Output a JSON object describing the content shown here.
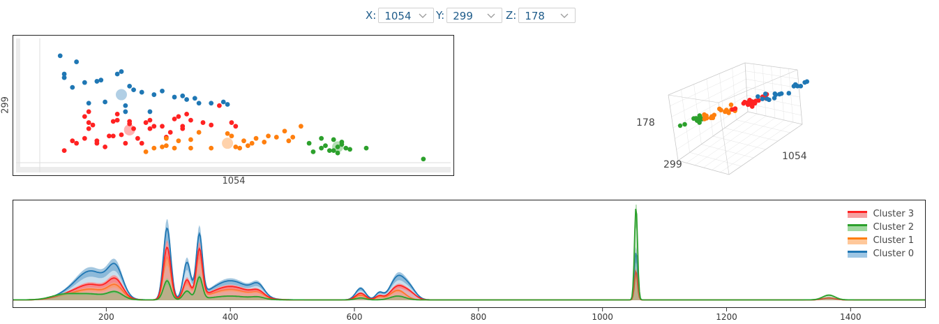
{
  "controls": {
    "x": {
      "label": "X:",
      "value": "1054"
    },
    "y": {
      "label": "Y:",
      "value": "299"
    },
    "z": {
      "label": "Z:",
      "value": "178"
    }
  },
  "colors": {
    "cluster0": "#1f77b4",
    "cluster1": "#ff7f0e",
    "cluster2": "#2ca02c",
    "cluster3": "#ff2222"
  },
  "chart_data": [
    {
      "type": "scatter",
      "title": "",
      "xlabel": "1054",
      "ylabel": "299",
      "grid": false,
      "xlim": [
        0,
        100
      ],
      "ylim": [
        0,
        100
      ],
      "series": [
        {
          "key": "cluster0",
          "color": "#1f77b4",
          "x": [
            5,
            9,
            6,
            6,
            8,
            11,
            15,
            14,
            20,
            19,
            22,
            23,
            25,
            28,
            30,
            33,
            35,
            38,
            39,
            42,
            45,
            46,
            12,
            16,
            21,
            27,
            36,
            21
          ],
          "y": [
            88,
            83,
            70,
            73,
            62,
            66,
            68,
            67,
            75,
            73,
            63,
            60,
            58,
            56,
            59,
            54,
            55,
            53,
            49,
            49,
            50,
            48,
            49,
            50,
            42,
            42,
            52,
            47
          ],
          "centroid": {
            "x": 20,
            "y": 56
          }
        },
        {
          "key": "cluster3",
          "color": "#ff2222",
          "x": [
            6,
            8,
            9,
            11,
            12,
            12,
            13,
            14,
            14,
            16,
            17,
            18,
            18,
            19,
            20,
            21,
            22,
            22,
            23,
            24,
            25,
            26,
            27,
            27,
            28,
            30,
            31,
            32,
            33,
            34,
            35,
            35,
            36,
            37,
            40,
            42,
            44,
            47,
            48,
            11,
            12,
            19
          ],
          "y": [
            10,
            18,
            16,
            20,
            28,
            33,
            31,
            18,
            16,
            13,
            22,
            22,
            34,
            40,
            23,
            16,
            32,
            34,
            28,
            20,
            16,
            33,
            35,
            28,
            30,
            30,
            21,
            25,
            36,
            38,
            30,
            28,
            40,
            35,
            33,
            31,
            47,
            33,
            30,
            38,
            42,
            35
          ],
          "centroid": {
            "x": 22,
            "y": 27
          }
        },
        {
          "key": "cluster1",
          "color": "#ff7f0e",
          "x": [
            26,
            28,
            30,
            31,
            31,
            33,
            34,
            37,
            37,
            39,
            42,
            46,
            47,
            48,
            49,
            50,
            51,
            52,
            53,
            55,
            56,
            58,
            60,
            61,
            62,
            64
          ],
          "y": [
            9,
            12,
            13,
            20,
            14,
            12,
            18,
            12,
            19,
            25,
            12,
            24,
            22,
            13,
            12,
            18,
            14,
            16,
            20,
            17,
            22,
            21,
            26,
            18,
            21,
            30
          ],
          "centroid": {
            "x": 46,
            "y": 16
          }
        },
        {
          "key": "cluster2",
          "color": "#2ca02c",
          "x": [
            67,
            69,
            70,
            71,
            72,
            73,
            73,
            74,
            75,
            76,
            80,
            66,
            69,
            72,
            74,
            94
          ],
          "y": [
            9,
            12,
            14,
            10,
            10,
            8,
            13,
            17,
            12,
            11,
            12,
            16,
            20,
            19,
            15,
            3
          ],
          "centroid": {
            "x": 73,
            "y": 13
          }
        }
      ]
    },
    {
      "type": "scatter",
      "title": "",
      "axes_labels": {
        "x": "1054",
        "y": "299",
        "z": "178"
      },
      "projection": "3d",
      "series": [
        {
          "key": "cluster2",
          "color": "#2ca02c",
          "t": [
            0.02,
            0.07,
            0.09,
            0.1,
            0.11,
            0.12,
            0.13,
            0.14,
            0.15,
            0.16
          ]
        },
        {
          "key": "cluster1",
          "color": "#ff7f0e",
          "t": [
            0.17,
            0.19,
            0.2,
            0.22,
            0.23,
            0.24,
            0.25,
            0.27,
            0.28,
            0.29,
            0.3,
            0.32,
            0.33,
            0.34,
            0.36,
            0.38,
            0.4,
            0.41,
            0.43,
            0.44
          ]
        },
        {
          "key": "cluster3",
          "color": "#ff2222",
          "t": [
            0.45,
            0.47,
            0.48,
            0.49,
            0.5,
            0.51,
            0.52,
            0.53,
            0.54,
            0.55,
            0.56,
            0.57,
            0.58,
            0.59,
            0.6,
            0.61,
            0.62,
            0.63,
            0.64,
            0.65,
            0.66
          ]
        },
        {
          "key": "cluster0",
          "color": "#1f77b4",
          "t": [
            0.6,
            0.63,
            0.66,
            0.69,
            0.72,
            0.75,
            0.77,
            0.79,
            0.81,
            0.83,
            0.85,
            0.87,
            0.89,
            0.91,
            0.93,
            0.95,
            0.97,
            0.99
          ]
        }
      ]
    },
    {
      "type": "area",
      "title": "",
      "xlabel": "",
      "ylabel": "",
      "xlim": [
        50,
        1520
      ],
      "ylim": [
        0,
        1
      ],
      "x_ticks": [
        200,
        400,
        600,
        800,
        1000,
        1200,
        1400
      ],
      "legend_position": "top-right",
      "series": [
        {
          "name": "Cluster 3",
          "key": "cluster3",
          "color": "#ff2222",
          "peaks": [
            [
              130,
              0.03,
              20
            ],
            [
              175,
              0.16,
              25
            ],
            [
              215,
              0.18,
              12
            ],
            [
              298,
              0.55,
              6
            ],
            [
              330,
              0.2,
              6
            ],
            [
              350,
              0.5,
              5
            ],
            [
              400,
              0.14,
              30
            ],
            [
              445,
              0.06,
              10
            ],
            [
              610,
              0.07,
              8
            ],
            [
              640,
              0.04,
              6
            ],
            [
              670,
              0.14,
              12
            ],
            [
              690,
              0.06,
              10
            ],
            [
              1054,
              0.3,
              2.5
            ],
            [
              1365,
              0.02,
              10
            ]
          ]
        },
        {
          "name": "Cluster 2",
          "key": "cluster2",
          "color": "#2ca02c",
          "peaks": [
            [
              130,
              0.05,
              20
            ],
            [
              175,
              0.06,
              25
            ],
            [
              215,
              0.07,
              12
            ],
            [
              298,
              0.2,
              6
            ],
            [
              330,
              0.09,
              6
            ],
            [
              350,
              0.23,
              5
            ],
            [
              400,
              0.04,
              30
            ],
            [
              445,
              0.02,
              10
            ],
            [
              610,
              0.02,
              8
            ],
            [
              670,
              0.04,
              12
            ],
            [
              1054,
              0.97,
              2.5
            ],
            [
              1365,
              0.05,
              10
            ]
          ]
        },
        {
          "name": "Cluster 1",
          "key": "cluster1",
          "color": "#ff7f0e",
          "peaks": [
            [
              130,
              0.03,
              20
            ],
            [
              175,
              0.11,
              25
            ],
            [
              215,
              0.13,
              12
            ],
            [
              298,
              0.45,
              6
            ],
            [
              330,
              0.18,
              6
            ],
            [
              350,
              0.45,
              5
            ],
            [
              400,
              0.11,
              30
            ],
            [
              445,
              0.05,
              10
            ],
            [
              610,
              0.05,
              8
            ],
            [
              640,
              0.03,
              6
            ],
            [
              670,
              0.1,
              12
            ],
            [
              1054,
              0.28,
              2.5
            ],
            [
              1365,
              0.02,
              10
            ]
          ]
        },
        {
          "name": "Cluster 0",
          "key": "cluster0",
          "color": "#1f77b4",
          "peaks": [
            [
              130,
              0.03,
              20
            ],
            [
              175,
              0.3,
              25
            ],
            [
              215,
              0.29,
              12
            ],
            [
              298,
              0.75,
              6
            ],
            [
              330,
              0.38,
              6
            ],
            [
              350,
              0.64,
              5
            ],
            [
              400,
              0.2,
              30
            ],
            [
              445,
              0.11,
              10
            ],
            [
              610,
              0.12,
              8
            ],
            [
              640,
              0.07,
              6
            ],
            [
              670,
              0.24,
              12
            ],
            [
              690,
              0.1,
              10
            ],
            [
              1054,
              0.5,
              2.5
            ],
            [
              1365,
              0.02,
              10
            ]
          ]
        }
      ]
    }
  ]
}
